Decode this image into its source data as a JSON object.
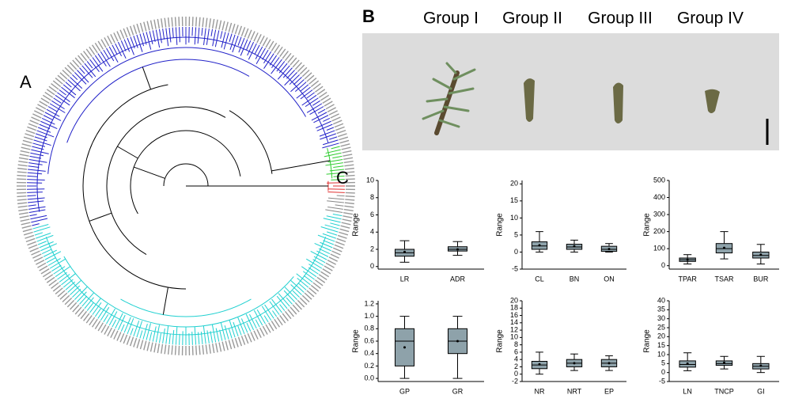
{
  "panel_labels": [
    "A",
    "B",
    "C"
  ],
  "groups": [
    "Group I",
    "Group II",
    "Group III",
    "Group IV"
  ],
  "chart_data": [
    {
      "type": "box",
      "ylabel": "Range",
      "color": "#8ea2aa",
      "categories": [
        "LR",
        "ADR"
      ],
      "ylim": [
        -0.3,
        10
      ],
      "yticks": [
        0,
        2,
        4,
        6,
        8,
        10
      ],
      "min": [
        0.5,
        1.3
      ],
      "q1": [
        1.2,
        1.8
      ],
      "median": [
        1.6,
        2.0
      ],
      "q3": [
        2.0,
        2.3
      ],
      "max": [
        3.0,
        2.9
      ],
      "mean": [
        1.7,
        2.0
      ]
    },
    {
      "type": "box",
      "ylabel": "Range",
      "color": "#8ea2aa",
      "categories": [
        "CL",
        "BN",
        "ON"
      ],
      "ylim": [
        -5,
        21
      ],
      "yticks": [
        -5,
        0,
        5,
        10,
        15,
        20
      ],
      "min": [
        0,
        0,
        0
      ],
      "q1": [
        0.8,
        0.8,
        0.2
      ],
      "median": [
        1.8,
        1.5,
        0.8
      ],
      "q3": [
        3,
        2.3,
        1.7
      ],
      "max": [
        6,
        3.5,
        2.5
      ],
      "mean": [
        2,
        1.7,
        0.9
      ]
    },
    {
      "type": "box",
      "ylabel": "Range",
      "color": "#8ea2aa",
      "categories": [
        "TPAR",
        "TSAR",
        "BUR"
      ],
      "ylim": [
        -20,
        500
      ],
      "yticks": [
        0,
        100,
        200,
        300,
        400,
        500
      ],
      "min": [
        10,
        40,
        10
      ],
      "q1": [
        25,
        75,
        45
      ],
      "median": [
        35,
        100,
        60
      ],
      "q3": [
        45,
        130,
        80
      ],
      "max": [
        65,
        200,
        125
      ],
      "mean": [
        35,
        105,
        65
      ]
    },
    {
      "type": "box",
      "ylabel": "Range",
      "color": "#8ea2aa",
      "categories": [
        "GP",
        "GR"
      ],
      "ylim": [
        -0.05,
        1.25
      ],
      "yticks": [
        {
          "value": 0,
          "label": "0.0"
        },
        0.2,
        0.4,
        0.6,
        0.8,
        {
          "value": 1,
          "label": "1.0"
        },
        1.2
      ],
      "min": [
        0,
        0
      ],
      "q1": [
        0.2,
        0.4
      ],
      "median": [
        0.6,
        0.6
      ],
      "q3": [
        0.8,
        0.8
      ],
      "max": [
        1.0,
        1.0
      ],
      "mean": [
        0.5,
        0.6
      ]
    },
    {
      "type": "box",
      "ylabel": "Range",
      "color": "#8ea2aa",
      "categories": [
        "NR",
        "NRT",
        "EP"
      ],
      "ylim": [
        -2,
        20
      ],
      "yticks": [
        -2,
        0,
        2,
        4,
        6,
        8,
        10,
        12,
        14,
        16,
        18,
        20
      ],
      "min": [
        0,
        1,
        1
      ],
      "q1": [
        1.5,
        2,
        2
      ],
      "median": [
        2.5,
        3,
        3
      ],
      "q3": [
        3.5,
        4,
        4
      ],
      "max": [
        6,
        5.5,
        5
      ],
      "mean": [
        2.7,
        3,
        3
      ]
    },
    {
      "type": "box",
      "ylabel": "Range",
      "color": "#8ea2aa",
      "categories": [
        "LN",
        "TNCP",
        "GI"
      ],
      "ylim": [
        -5,
        40
      ],
      "yticks": [
        -5,
        0,
        5,
        10,
        15,
        20,
        25,
        30,
        35,
        40
      ],
      "min": [
        1,
        2,
        0
      ],
      "q1": [
        3,
        4,
        2
      ],
      "median": [
        4.5,
        5,
        3.5
      ],
      "q3": [
        6.5,
        6.5,
        5
      ],
      "max": [
        11,
        9,
        9
      ],
      "mean": [
        5,
        5.5,
        3.8
      ]
    }
  ]
}
